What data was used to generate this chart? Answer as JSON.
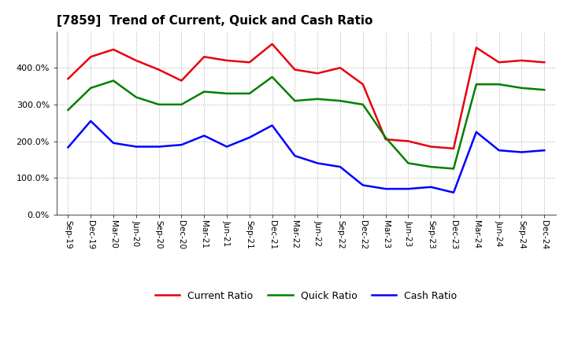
{
  "title": "[7859]  Trend of Current, Quick and Cash Ratio",
  "labels": [
    "Sep-19",
    "Dec-19",
    "Mar-20",
    "Jun-20",
    "Sep-20",
    "Dec-20",
    "Mar-21",
    "Jun-21",
    "Sep-21",
    "Dec-21",
    "Mar-22",
    "Jun-22",
    "Sep-22",
    "Dec-22",
    "Mar-23",
    "Jun-23",
    "Sep-23",
    "Dec-23",
    "Mar-24",
    "Jun-24",
    "Sep-24",
    "Dec-24"
  ],
  "current_ratio": [
    370,
    430,
    450,
    420,
    395,
    365,
    430,
    420,
    415,
    465,
    395,
    385,
    400,
    355,
    205,
    200,
    185,
    180,
    455,
    415,
    420,
    415
  ],
  "quick_ratio": [
    285,
    345,
    365,
    320,
    300,
    300,
    335,
    330,
    330,
    375,
    310,
    315,
    310,
    300,
    210,
    140,
    130,
    125,
    355,
    355,
    345,
    340
  ],
  "cash_ratio": [
    183,
    255,
    195,
    185,
    185,
    190,
    215,
    185,
    210,
    243,
    160,
    140,
    130,
    80,
    70,
    70,
    75,
    60,
    225,
    175,
    170,
    175
  ],
  "current_color": "#e8000d",
  "quick_color": "#008000",
  "cash_color": "#0000ff",
  "ylim": [
    0,
    500
  ],
  "yticks": [
    0,
    100,
    200,
    300,
    400
  ],
  "ytick_labels": [
    "0.0%",
    "100.0%",
    "200.0%",
    "300.0%",
    "400.0%"
  ],
  "grid_color": "#aaaaaa",
  "bg_color": "#ffffff",
  "legend_labels": [
    "Current Ratio",
    "Quick Ratio",
    "Cash Ratio"
  ]
}
